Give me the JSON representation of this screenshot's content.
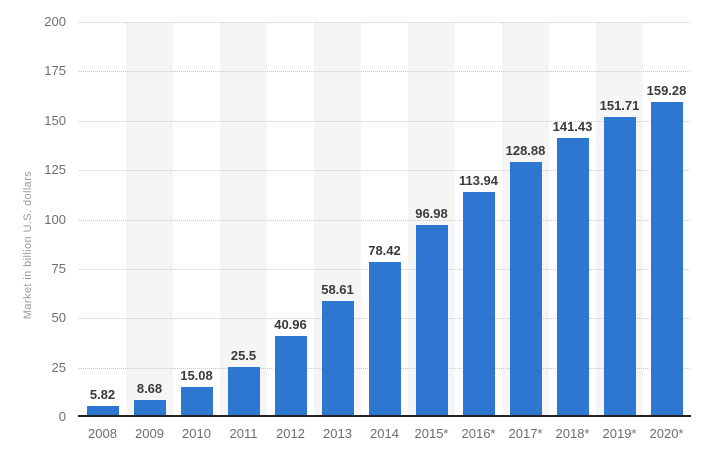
{
  "chart_data": {
    "type": "bar",
    "categories": [
      "2008",
      "2009",
      "2010",
      "2011",
      "2012",
      "2013",
      "2014",
      "2015*",
      "2016*",
      "2017*",
      "2018*",
      "2019*",
      "2020*"
    ],
    "values": [
      5.82,
      8.68,
      15.08,
      25.5,
      40.96,
      58.61,
      78.42,
      96.98,
      113.94,
      128.88,
      141.43,
      151.71,
      159.28
    ],
    "value_labels": [
      "5.82",
      "8.68",
      "15.08",
      "25.5",
      "40.96",
      "58.61",
      "78.42",
      "96.98",
      "113.94",
      "128.88",
      "141.43",
      "151.71",
      "159.28"
    ],
    "title": "",
    "xlabel": "",
    "ylabel": "Market in billion U.S. dollars",
    "ylim": [
      0,
      200
    ],
    "yticks": [
      0,
      25,
      50,
      75,
      100,
      125,
      150,
      175,
      200
    ],
    "grid": "horizontal-dotted",
    "legend": "none",
    "bar_color": "#2d77d2",
    "stripe_color": "#f5f5f5",
    "axis_line_color": "#222222",
    "tick_label_color": "#6e6e6e",
    "value_label_color": "#3b3b3b"
  }
}
